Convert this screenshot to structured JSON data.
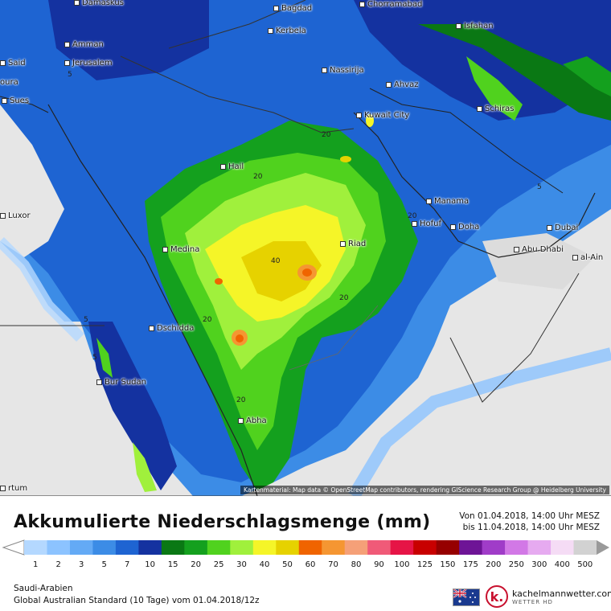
{
  "map": {
    "cities": [
      {
        "name": "Damaskus"
      },
      {
        "name": "Bagdad"
      },
      {
        "name": "Chorramabad"
      },
      {
        "name": "Amman"
      },
      {
        "name": "Kerbela"
      },
      {
        "name": "Isfahan"
      },
      {
        "name": "Jerusalem"
      },
      {
        "name": "Nassirija"
      },
      {
        "name": "Ahvaz"
      },
      {
        "name": "Sues"
      },
      {
        "name": "Schiras"
      },
      {
        "name": "Kuwait City"
      },
      {
        "name": "Hail"
      },
      {
        "name": "Manama"
      },
      {
        "name": "Hofuf"
      },
      {
        "name": "Doha"
      },
      {
        "name": "Dubai"
      },
      {
        "name": "Riad"
      },
      {
        "name": "Medina"
      },
      {
        "name": "Abu Dhabi"
      },
      {
        "name": "al-Ain"
      },
      {
        "name": "Dschidda"
      },
      {
        "name": "Bur Sudan"
      },
      {
        "name": "Abha"
      },
      {
        "name": "Luxor"
      },
      {
        "name": "Said"
      },
      {
        "name": "oura"
      },
      {
        "name": "rtum"
      }
    ],
    "contour_labels": [
      "5",
      "20",
      "20",
      "5",
      "20",
      "40",
      "20",
      "20",
      "5",
      "5",
      "20"
    ],
    "attribution": "Kartenmaterial: Map data © OpenStreetMap contributors, rendering GIScience Research Group @ Heidelberg University"
  },
  "header": {
    "title": "Akkumulierte Niederschlagsmenge (mm)",
    "period_from": "Von 01.04.2018, 14:00 Uhr MESZ",
    "period_to": "bis 11.04.2018, 14:00 Uhr MESZ"
  },
  "legend": {
    "labels": [
      "1",
      "2",
      "3",
      "5",
      "7",
      "10",
      "15",
      "20",
      "25",
      "30",
      "40",
      "50",
      "60",
      "70",
      "80",
      "90",
      "100",
      "125",
      "150",
      "175",
      "200",
      "250",
      "300",
      "400",
      "500"
    ],
    "colors": [
      "#b4d8ff",
      "#8cc3ff",
      "#64aaf5",
      "#3c8ce6",
      "#1e64d2",
      "#1432a0",
      "#0a7814",
      "#14a01e",
      "#50d21e",
      "#a0f03c",
      "#f5f528",
      "#e6d200",
      "#f06400",
      "#f59632",
      "#f5a078",
      "#f05a78",
      "#e61446",
      "#c80000",
      "#960000",
      "#6e1496",
      "#a03cc8",
      "#d278e6",
      "#e6aaf0",
      "#f5dcf5",
      "#d2d2d2"
    ]
  },
  "footer": {
    "region": "Saudi-Arabien",
    "model": "Global Australian Standard (10 Tage) vom 01.04.2018/12z",
    "brand_name": "kachelmannwetter.com",
    "brand_sub": "WETTER HD",
    "brand_logo_letter": "k."
  }
}
